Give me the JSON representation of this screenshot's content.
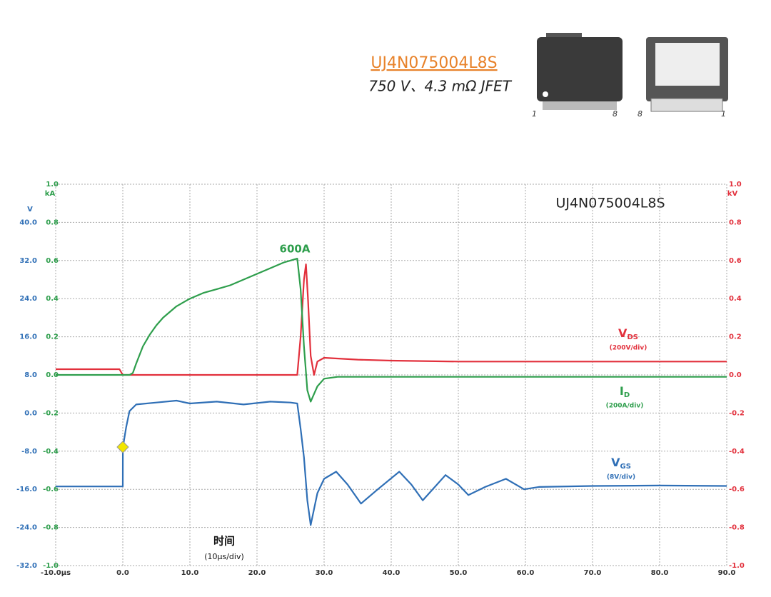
{
  "header": {
    "product_link": "UJ4N075004L8S",
    "product_desc": "750 V、4.3 mΩ JFET",
    "pins": [
      "1",
      "8",
      "8",
      "1"
    ]
  },
  "chart_data": {
    "type": "line",
    "title": "UJ4N075004L8S",
    "peak_label": "600A",
    "xlabel": "时间",
    "xlabel_sub": "(10µs/div)",
    "xlim": [
      -10,
      90
    ],
    "xticks": [
      {
        "value": -10,
        "label": "-10.0µs"
      },
      {
        "value": 0,
        "label": "0.0"
      },
      {
        "value": 10,
        "label": "10.0"
      },
      {
        "value": 20,
        "label": "20.0"
      },
      {
        "value": 30,
        "label": "30.0"
      },
      {
        "value": 40,
        "label": "40.0"
      },
      {
        "value": 50,
        "label": "50.0"
      },
      {
        "value": 60,
        "label": "60.0"
      },
      {
        "value": 70,
        "label": "70.0"
      },
      {
        "value": 80,
        "label": "80.0"
      },
      {
        "value": 90,
        "label": "90.0"
      }
    ],
    "ylabel": "V",
    "ylim": [
      -32,
      48
    ],
    "yticks": [
      {
        "value": 40,
        "label": "40.0"
      },
      {
        "value": 32,
        "label": "32.0"
      },
      {
        "value": 24,
        "label": "24.0"
      },
      {
        "value": 16,
        "label": "16.0"
      },
      {
        "value": 8,
        "label": "8.0"
      },
      {
        "value": 0,
        "label": "0.0"
      },
      {
        "value": -8,
        "label": "-8.0"
      },
      {
        "value": -16,
        "label": "-16.0"
      },
      {
        "value": -24,
        "label": "-24.0"
      },
      {
        "value": -32,
        "label": "-32.0"
      }
    ],
    "y2label": "kV",
    "y2lim": [
      -1,
      1
    ],
    "y2ticks": [
      {
        "value": 1,
        "label": "1.0"
      },
      0.8,
      0.6,
      0.4,
      0.2,
      {
        "value": 0,
        "label": "0.0"
      },
      -0.2,
      -0.4,
      -0.6,
      -0.8,
      {
        "value": -1,
        "label": "-1.0"
      }
    ],
    "y3label": "kA",
    "y3lim": [
      -1,
      1
    ],
    "y3ticks": [
      {
        "value": 1,
        "label": "1.0"
      },
      0.8,
      0.6,
      0.4,
      0.2,
      {
        "value": 0,
        "label": "0.0"
      },
      -0.2,
      -0.4,
      -0.6,
      -0.8,
      {
        "value": -1,
        "label": "-1.0"
      }
    ],
    "grid": true,
    "series": [
      {
        "name": "V",
        "name_sub": "DS",
        "scale": "(200V/div)",
        "color": "#e2303c",
        "axis": "y2",
        "x": [
          -10,
          -5,
          -0.5,
          0,
          5,
          10,
          20,
          25,
          26,
          26.5,
          27,
          27.3,
          27.6,
          28,
          28.5,
          29,
          30,
          35,
          40,
          50,
          60,
          70,
          80,
          90
        ],
        "values": [
          0.03,
          0.03,
          0.03,
          0.0,
          0.0,
          0.0,
          0.0,
          0.0,
          0.0,
          0.2,
          0.5,
          0.58,
          0.4,
          0.1,
          0.0,
          0.07,
          0.09,
          0.08,
          0.075,
          0.07,
          0.07,
          0.07,
          0.07,
          0.07
        ]
      },
      {
        "name": "I",
        "name_sub": "D",
        "scale": "(200A/div)",
        "color": "#2e9e4c",
        "axis": "y3",
        "x": [
          -10,
          -5,
          0,
          1,
          1.5,
          2,
          3,
          4,
          5,
          6,
          8,
          10,
          12,
          14,
          16,
          18,
          20,
          22,
          24,
          25,
          26,
          26.5,
          27,
          27.5,
          28,
          28.5,
          29,
          30,
          32,
          35,
          40,
          50,
          60,
          70,
          80,
          90
        ],
        "values": [
          0,
          0,
          0,
          0,
          0.01,
          0.06,
          0.15,
          0.21,
          0.26,
          0.3,
          0.36,
          0.4,
          0.43,
          0.45,
          0.47,
          0.5,
          0.53,
          0.56,
          0.59,
          0.6,
          0.61,
          0.45,
          0.15,
          -0.08,
          -0.14,
          -0.1,
          -0.06,
          -0.02,
          -0.01,
          -0.01,
          -0.01,
          -0.01,
          -0.01,
          -0.01,
          -0.01,
          -0.01
        ]
      },
      {
        "name": "V",
        "name_sub": "GS",
        "scale": "(8V/div)",
        "color": "#2f6fb6",
        "x": [
          -10,
          -5,
          0,
          0.01,
          0.5,
          1,
          2,
          5,
          8,
          10,
          14,
          18,
          22,
          25,
          26,
          26.5,
          27,
          27.5,
          28,
          29,
          30,
          31.8,
          33.5,
          35.5,
          38,
          41.2,
          43,
          44.7,
          46.5,
          48.1,
          50,
          51.5,
          54,
          57.1,
          59.8,
          62,
          70,
          80,
          90
        ],
        "values": [
          -15.4,
          -15.4,
          -15.4,
          -7.2,
          -3,
          0.4,
          1.8,
          2.2,
          2.6,
          2.0,
          2.4,
          1.8,
          2.4,
          2.2,
          2.0,
          -3.3,
          -9.3,
          -18.3,
          -23.5,
          -16.8,
          -13.8,
          -12.3,
          -15,
          -19,
          -16,
          -12.3,
          -15,
          -18.3,
          -15.5,
          -13,
          -15,
          -17.2,
          -15.5,
          -13.8,
          -16,
          -15.5,
          -15.3,
          -15.2,
          -15.3
        ]
      }
    ]
  }
}
